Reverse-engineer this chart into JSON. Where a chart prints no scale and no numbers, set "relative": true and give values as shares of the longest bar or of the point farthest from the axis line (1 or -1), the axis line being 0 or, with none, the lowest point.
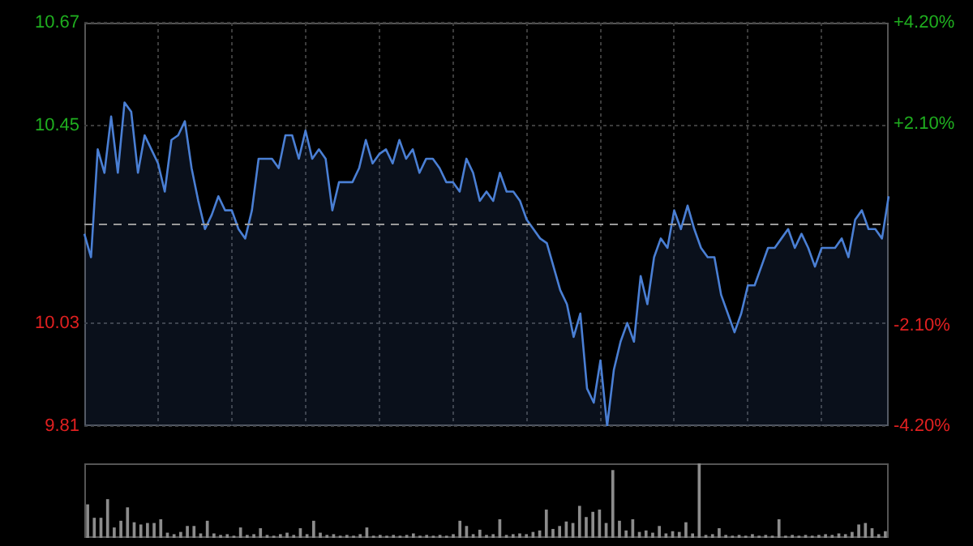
{
  "chart_data": [
    {
      "type": "area",
      "color": "#4a7fd4",
      "categories": [
        null,
        null,
        null,
        null,
        null,
        null,
        null,
        null,
        null,
        null,
        null,
        null,
        null,
        null,
        null,
        null,
        null,
        null,
        null,
        null,
        null,
        null,
        null,
        null,
        null,
        null,
        null,
        null,
        null,
        null,
        null,
        null,
        null,
        null,
        null,
        null,
        null,
        null,
        null,
        null,
        null,
        null,
        null,
        null,
        null,
        null,
        null,
        null,
        null,
        null,
        null,
        null,
        null,
        null,
        null,
        null,
        null,
        null,
        null,
        null,
        null,
        null,
        null,
        null,
        null,
        null,
        null,
        null,
        null,
        null,
        null,
        null,
        null,
        null,
        null,
        null,
        null,
        null,
        null,
        null,
        null,
        null,
        null,
        null,
        null,
        null,
        null,
        null,
        null,
        null,
        null,
        null,
        null,
        null,
        null,
        null,
        null,
        null,
        null,
        null,
        null,
        null,
        null,
        null,
        null,
        null,
        null,
        null,
        null,
        null,
        null,
        null,
        null,
        null,
        null,
        null,
        null,
        null,
        null,
        null,
        null
      ],
      "values": [
        10.22,
        10.17,
        10.4,
        10.35,
        10.47,
        10.35,
        10.5,
        10.48,
        10.35,
        10.43,
        10.4,
        10.37,
        10.31,
        10.42,
        10.43,
        10.46,
        10.36,
        10.29,
        10.23,
        10.26,
        10.3,
        10.27,
        10.27,
        10.23,
        10.21,
        10.27,
        10.38,
        10.38,
        10.38,
        10.36,
        10.43,
        10.43,
        10.38,
        10.44,
        10.38,
        10.4,
        10.38,
        10.27,
        10.33,
        10.33,
        10.33,
        10.36,
        10.42,
        10.37,
        10.39,
        10.4,
        10.37,
        10.42,
        10.38,
        10.4,
        10.35,
        10.38,
        10.38,
        10.36,
        10.33,
        10.33,
        10.31,
        10.38,
        10.35,
        10.29,
        10.31,
        10.29,
        10.35,
        10.31,
        10.31,
        10.29,
        10.25,
        10.23,
        10.21,
        10.2,
        10.15,
        10.1,
        10.07,
        10,
        10.05,
        9.89,
        9.86,
        9.95,
        9.81,
        9.93,
        9.99,
        10.03,
        9.99,
        10.13,
        10.07,
        10.17,
        10.21,
        10.19,
        10.27,
        10.23,
        10.28,
        10.23,
        10.19,
        10.17,
        10.17,
        10.09,
        10.05,
        10.01,
        10.05,
        10.11,
        10.11,
        10.15,
        10.19,
        10.19,
        10.21,
        10.23,
        10.19,
        10.22,
        10.19,
        10.15,
        10.19,
        10.19,
        10.19,
        10.21,
        10.17,
        10.25,
        10.27,
        10.23,
        10.23,
        10.21,
        10.3
      ],
      "ylim": [
        9.81,
        10.67
      ],
      "yticks": [
        9.81,
        10.03,
        10.45,
        10.67
      ],
      "y2lim": [
        -4.2,
        4.2
      ],
      "y2ticks": [
        {
          "value": -4.2,
          "label": "-4.20%"
        },
        {
          "value": -2.1,
          "label": "-2.10%"
        },
        {
          "value": 2.1,
          "label": "+2.10%"
        },
        {
          "value": 4.2,
          "label": "+4.20%"
        }
      ],
      "ref_lines": [
        {
          "axis": "y",
          "value": 10.24,
          "color": "#9a9a9a",
          "line_style": "dashed"
        }
      ],
      "grid": true,
      "legend": false,
      "marker": "none",
      "line_style": "solid",
      "tick_labels": "y"
    },
    {
      "type": "bar",
      "relative": true,
      "color": "#8c8c8c",
      "categories": [
        null,
        null,
        null,
        null,
        null,
        null,
        null,
        null,
        null,
        null,
        null,
        null,
        null,
        null,
        null,
        null,
        null,
        null,
        null,
        null,
        null,
        null,
        null,
        null,
        null,
        null,
        null,
        null,
        null,
        null,
        null,
        null,
        null,
        null,
        null,
        null,
        null,
        null,
        null,
        null,
        null,
        null,
        null,
        null,
        null,
        null,
        null,
        null,
        null,
        null,
        null,
        null,
        null,
        null,
        null,
        null,
        null,
        null,
        null,
        null,
        null,
        null,
        null,
        null,
        null,
        null,
        null,
        null,
        null,
        null,
        null,
        null,
        null,
        null,
        null,
        null,
        null,
        null,
        null,
        null,
        null,
        null,
        null,
        null,
        null,
        null,
        null,
        null,
        null,
        null,
        null,
        null,
        null,
        null,
        null,
        null,
        null,
        null,
        null,
        null,
        null,
        null,
        null,
        null,
        null,
        null,
        null,
        null,
        null,
        null,
        null,
        null,
        null,
        null,
        null,
        null,
        null,
        null,
        null,
        null,
        null
      ],
      "values": [
        0.45,
        0.27,
        0.27,
        0.52,
        0.14,
        0.23,
        0.41,
        0.21,
        0.18,
        0.2,
        0.2,
        0.25,
        0.07,
        0.05,
        0.08,
        0.16,
        0.16,
        0.06,
        0.23,
        0.06,
        0.04,
        0.05,
        0.03,
        0.14,
        0.04,
        0.05,
        0.13,
        0.04,
        0.03,
        0.05,
        0.07,
        0.04,
        0.13,
        0.05,
        0.23,
        0.07,
        0.04,
        0.05,
        0.03,
        0.04,
        0.03,
        0.05,
        0.14,
        0.03,
        0.04,
        0.03,
        0.04,
        0.03,
        0.04,
        0.06,
        0.03,
        0.04,
        0.03,
        0.04,
        0.03,
        0.05,
        0.23,
        0.16,
        0.05,
        0.11,
        0.04,
        0.05,
        0.25,
        0.04,
        0.05,
        0.06,
        0.05,
        0.08,
        0.1,
        0.38,
        0.12,
        0.16,
        0.22,
        0.2,
        0.43,
        0.28,
        0.35,
        0.38,
        0.2,
        0.91,
        0.23,
        0.1,
        0.25,
        0.08,
        0.1,
        0.07,
        0.16,
        0.06,
        0.09,
        0.08,
        0.21,
        0.06,
        1,
        0.04,
        0.05,
        0.13,
        0.04,
        0.03,
        0.04,
        0.03,
        0.05,
        0.03,
        0.04,
        0.03,
        0.25,
        0.03,
        0.04,
        0.03,
        0.04,
        0.03,
        0.04,
        0.05,
        0.04,
        0.06,
        0.05,
        0.08,
        0.18,
        0.2,
        0.13,
        0.05,
        0.09
      ],
      "legend": false,
      "tick_labels": false
    }
  ]
}
